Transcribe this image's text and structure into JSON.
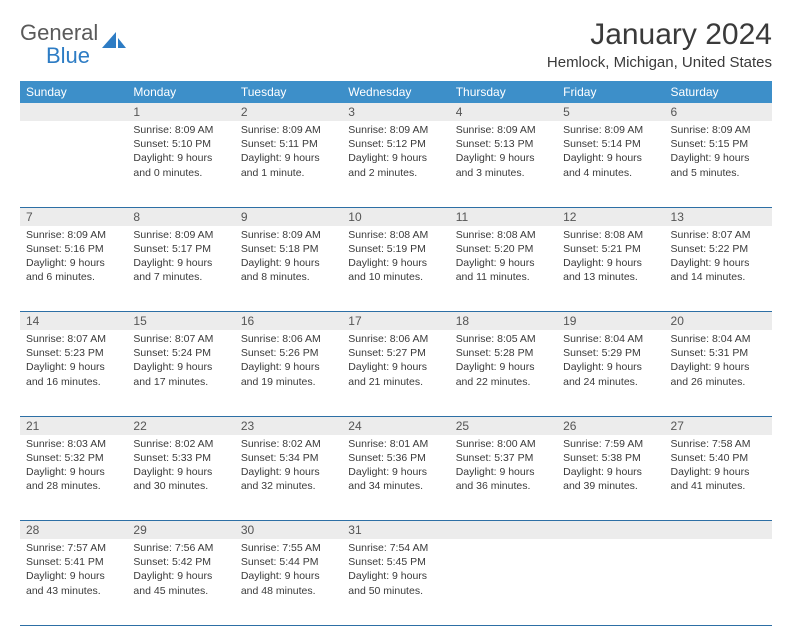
{
  "logo": {
    "text_gray": "General",
    "text_blue": "Blue"
  },
  "title": "January 2024",
  "location": "Hemlock, Michigan, United States",
  "colors": {
    "header_bg": "#3d8fc9",
    "daynum_bg": "#ececec",
    "row_border": "#2d6fa5",
    "text": "#3a3a3a"
  },
  "day_names": [
    "Sunday",
    "Monday",
    "Tuesday",
    "Wednesday",
    "Thursday",
    "Friday",
    "Saturday"
  ],
  "weeks": [
    [
      {
        "n": "",
        "sr": "",
        "ss": "",
        "dl": ""
      },
      {
        "n": "1",
        "sr": "Sunrise: 8:09 AM",
        "ss": "Sunset: 5:10 PM",
        "dl": "Daylight: 9 hours and 0 minutes."
      },
      {
        "n": "2",
        "sr": "Sunrise: 8:09 AM",
        "ss": "Sunset: 5:11 PM",
        "dl": "Daylight: 9 hours and 1 minute."
      },
      {
        "n": "3",
        "sr": "Sunrise: 8:09 AM",
        "ss": "Sunset: 5:12 PM",
        "dl": "Daylight: 9 hours and 2 minutes."
      },
      {
        "n": "4",
        "sr": "Sunrise: 8:09 AM",
        "ss": "Sunset: 5:13 PM",
        "dl": "Daylight: 9 hours and 3 minutes."
      },
      {
        "n": "5",
        "sr": "Sunrise: 8:09 AM",
        "ss": "Sunset: 5:14 PM",
        "dl": "Daylight: 9 hours and 4 minutes."
      },
      {
        "n": "6",
        "sr": "Sunrise: 8:09 AM",
        "ss": "Sunset: 5:15 PM",
        "dl": "Daylight: 9 hours and 5 minutes."
      }
    ],
    [
      {
        "n": "7",
        "sr": "Sunrise: 8:09 AM",
        "ss": "Sunset: 5:16 PM",
        "dl": "Daylight: 9 hours and 6 minutes."
      },
      {
        "n": "8",
        "sr": "Sunrise: 8:09 AM",
        "ss": "Sunset: 5:17 PM",
        "dl": "Daylight: 9 hours and 7 minutes."
      },
      {
        "n": "9",
        "sr": "Sunrise: 8:09 AM",
        "ss": "Sunset: 5:18 PM",
        "dl": "Daylight: 9 hours and 8 minutes."
      },
      {
        "n": "10",
        "sr": "Sunrise: 8:08 AM",
        "ss": "Sunset: 5:19 PM",
        "dl": "Daylight: 9 hours and 10 minutes."
      },
      {
        "n": "11",
        "sr": "Sunrise: 8:08 AM",
        "ss": "Sunset: 5:20 PM",
        "dl": "Daylight: 9 hours and 11 minutes."
      },
      {
        "n": "12",
        "sr": "Sunrise: 8:08 AM",
        "ss": "Sunset: 5:21 PM",
        "dl": "Daylight: 9 hours and 13 minutes."
      },
      {
        "n": "13",
        "sr": "Sunrise: 8:07 AM",
        "ss": "Sunset: 5:22 PM",
        "dl": "Daylight: 9 hours and 14 minutes."
      }
    ],
    [
      {
        "n": "14",
        "sr": "Sunrise: 8:07 AM",
        "ss": "Sunset: 5:23 PM",
        "dl": "Daylight: 9 hours and 16 minutes."
      },
      {
        "n": "15",
        "sr": "Sunrise: 8:07 AM",
        "ss": "Sunset: 5:24 PM",
        "dl": "Daylight: 9 hours and 17 minutes."
      },
      {
        "n": "16",
        "sr": "Sunrise: 8:06 AM",
        "ss": "Sunset: 5:26 PM",
        "dl": "Daylight: 9 hours and 19 minutes."
      },
      {
        "n": "17",
        "sr": "Sunrise: 8:06 AM",
        "ss": "Sunset: 5:27 PM",
        "dl": "Daylight: 9 hours and 21 minutes."
      },
      {
        "n": "18",
        "sr": "Sunrise: 8:05 AM",
        "ss": "Sunset: 5:28 PM",
        "dl": "Daylight: 9 hours and 22 minutes."
      },
      {
        "n": "19",
        "sr": "Sunrise: 8:04 AM",
        "ss": "Sunset: 5:29 PM",
        "dl": "Daylight: 9 hours and 24 minutes."
      },
      {
        "n": "20",
        "sr": "Sunrise: 8:04 AM",
        "ss": "Sunset: 5:31 PM",
        "dl": "Daylight: 9 hours and 26 minutes."
      }
    ],
    [
      {
        "n": "21",
        "sr": "Sunrise: 8:03 AM",
        "ss": "Sunset: 5:32 PM",
        "dl": "Daylight: 9 hours and 28 minutes."
      },
      {
        "n": "22",
        "sr": "Sunrise: 8:02 AM",
        "ss": "Sunset: 5:33 PM",
        "dl": "Daylight: 9 hours and 30 minutes."
      },
      {
        "n": "23",
        "sr": "Sunrise: 8:02 AM",
        "ss": "Sunset: 5:34 PM",
        "dl": "Daylight: 9 hours and 32 minutes."
      },
      {
        "n": "24",
        "sr": "Sunrise: 8:01 AM",
        "ss": "Sunset: 5:36 PM",
        "dl": "Daylight: 9 hours and 34 minutes."
      },
      {
        "n": "25",
        "sr": "Sunrise: 8:00 AM",
        "ss": "Sunset: 5:37 PM",
        "dl": "Daylight: 9 hours and 36 minutes."
      },
      {
        "n": "26",
        "sr": "Sunrise: 7:59 AM",
        "ss": "Sunset: 5:38 PM",
        "dl": "Daylight: 9 hours and 39 minutes."
      },
      {
        "n": "27",
        "sr": "Sunrise: 7:58 AM",
        "ss": "Sunset: 5:40 PM",
        "dl": "Daylight: 9 hours and 41 minutes."
      }
    ],
    [
      {
        "n": "28",
        "sr": "Sunrise: 7:57 AM",
        "ss": "Sunset: 5:41 PM",
        "dl": "Daylight: 9 hours and 43 minutes."
      },
      {
        "n": "29",
        "sr": "Sunrise: 7:56 AM",
        "ss": "Sunset: 5:42 PM",
        "dl": "Daylight: 9 hours and 45 minutes."
      },
      {
        "n": "30",
        "sr": "Sunrise: 7:55 AM",
        "ss": "Sunset: 5:44 PM",
        "dl": "Daylight: 9 hours and 48 minutes."
      },
      {
        "n": "31",
        "sr": "Sunrise: 7:54 AM",
        "ss": "Sunset: 5:45 PM",
        "dl": "Daylight: 9 hours and 50 minutes."
      },
      {
        "n": "",
        "sr": "",
        "ss": "",
        "dl": ""
      },
      {
        "n": "",
        "sr": "",
        "ss": "",
        "dl": ""
      },
      {
        "n": "",
        "sr": "",
        "ss": "",
        "dl": ""
      }
    ]
  ]
}
